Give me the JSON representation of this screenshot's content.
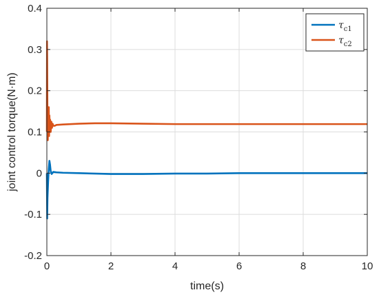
{
  "chart_data": {
    "type": "line",
    "xlabel": "time(s)",
    "ylabel": "joint control torque(N·m)",
    "xlim": [
      0,
      10
    ],
    "ylim": [
      -0.2,
      0.4
    ],
    "x_ticks": [
      "0",
      "2",
      "4",
      "6",
      "8",
      "10"
    ],
    "y_ticks": [
      "-0.2",
      "-0.1",
      "0",
      "0.1",
      "0.2",
      "0.3",
      "0.4"
    ],
    "grid": true,
    "legend_position": "top-right",
    "series": [
      {
        "name": "τ",
        "subscript": "c1",
        "color": "#0072BD",
        "x": [
          0,
          0.01,
          0.02,
          0.04,
          0.06,
          0.08,
          0.1,
          0.12,
          0.15,
          0.2,
          0.3,
          0.5,
          1,
          2,
          3,
          4,
          5,
          6,
          7,
          8,
          9,
          10
        ],
        "y": [
          0,
          -0.11,
          -0.06,
          -0.02,
          0.01,
          0.03,
          0.02,
          0.005,
          -0.002,
          0.003,
          0.002,
          0.001,
          0.0,
          -0.002,
          -0.002,
          -0.001,
          -0.001,
          0.0,
          0.0,
          0.0,
          0.0,
          0.0
        ]
      },
      {
        "name": "τ",
        "subscript": "c2",
        "color": "#D95319",
        "x": [
          0,
          0.005,
          0.01,
          0.02,
          0.03,
          0.04,
          0.05,
          0.06,
          0.07,
          0.08,
          0.09,
          0.1,
          0.12,
          0.14,
          0.16,
          0.18,
          0.2,
          0.25,
          0.3,
          0.5,
          1,
          1.5,
          2,
          3,
          4,
          5,
          6,
          7,
          8,
          9,
          10
        ],
        "y": [
          0.1,
          0.32,
          0.28,
          0.12,
          0.08,
          0.15,
          0.1,
          0.16,
          0.09,
          0.14,
          0.11,
          0.13,
          0.1,
          0.125,
          0.11,
          0.12,
          0.115,
          0.115,
          0.117,
          0.118,
          0.12,
          0.121,
          0.121,
          0.12,
          0.119,
          0.119,
          0.119,
          0.119,
          0.119,
          0.119,
          0.119
        ]
      }
    ]
  }
}
